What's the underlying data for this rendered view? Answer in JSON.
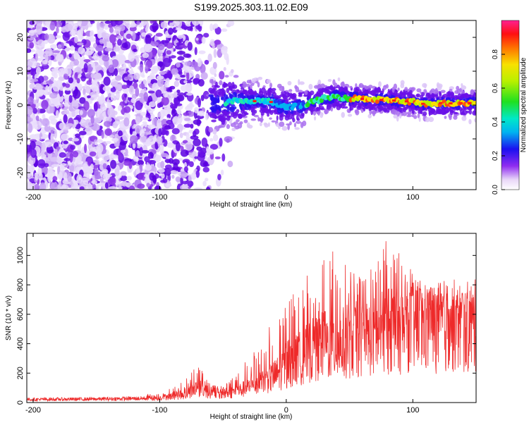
{
  "title": "S199.2025.303.11.02.E09",
  "chart_data": [
    {
      "type": "scatter",
      "name": "spectrogram",
      "xlabel": "Height of straight line (km)",
      "ylabel": "Frequency (Hz)",
      "xlim": [
        -205,
        150
      ],
      "ylim": [
        -25,
        25
      ],
      "xticks": [
        -200,
        -100,
        0,
        100
      ],
      "xtick_labels": [
        "-200",
        "-100",
        "0",
        "100"
      ],
      "yticks": [
        -20,
        -10,
        0,
        10,
        20
      ],
      "ytick_labels": [
        "-20",
        "-10",
        "0",
        "10",
        "20"
      ],
      "colorbar": {
        "label": "Normalized spectral amplitude",
        "range": [
          0,
          1
        ],
        "ticks": [
          0,
          0.2,
          0.4,
          0.6,
          0.8
        ],
        "tick_labels": [
          "0.0",
          "0.2",
          "0.4",
          "0.6",
          "0.8"
        ],
        "colormap": "rainbow (white-purple-blue-cyan-green-yellow-red-pink)"
      },
      "ridge_line": {
        "description": "Dominant frequency trace",
        "x": [
          -50,
          -40,
          -30,
          -20,
          -10,
          0,
          10,
          20,
          30,
          40,
          50,
          60,
          70,
          80,
          90,
          100,
          110,
          120,
          130,
          140,
          148
        ],
        "y": [
          0.5,
          1.2,
          1.0,
          1.3,
          0.8,
          -0.8,
          -0.3,
          0.8,
          2.0,
          2.5,
          2.0,
          1.8,
          1.6,
          1.4,
          1.2,
          1.0,
          0.2,
          0.6,
          0.5,
          0.6,
          0.6
        ]
      }
    },
    {
      "type": "line",
      "name": "snr",
      "xlabel": "Height of straight line (km)",
      "ylabel": "SNR (10 * v/v)",
      "xlim": [
        -205,
        150
      ],
      "ylim": [
        0,
        1150
      ],
      "xticks": [
        -200,
        -100,
        0,
        100
      ],
      "xtick_labels": [
        "-200",
        "-100",
        "0",
        "100"
      ],
      "yticks": [
        0,
        200,
        400,
        600,
        800,
        1000
      ],
      "ytick_labels": [
        "0",
        "200",
        "400",
        "600",
        "800",
        "1000"
      ],
      "color": "#ee2a2a",
      "envelope": {
        "x": [
          -205,
          -150,
          -100,
          -80,
          -70,
          -60,
          -50,
          -40,
          -30,
          -20,
          -10,
          0,
          10,
          20,
          30,
          40,
          50,
          60,
          70,
          80,
          90,
          100,
          110,
          120,
          130,
          140,
          150
        ],
        "baseline": [
          25,
          28,
          35,
          60,
          110,
          70,
          60,
          80,
          110,
          140,
          190,
          260,
          320,
          380,
          420,
          420,
          450,
          470,
          490,
          520,
          540,
          560,
          550,
          560,
          560,
          560,
          560
        ],
        "peaks": [
          50,
          50,
          60,
          150,
          290,
          120,
          120,
          200,
          300,
          420,
          560,
          680,
          800,
          900,
          1050,
          1020,
          900,
          850,
          950,
          1150,
          1000,
          900,
          800,
          780,
          720,
          750,
          740
        ]
      }
    }
  ],
  "colors": {
    "snr_line": "#ee2a2a",
    "frame": "#000000"
  }
}
